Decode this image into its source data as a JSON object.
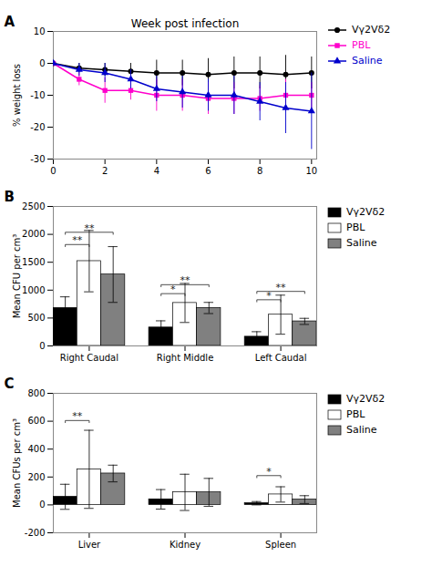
{
  "chart_data": [
    {
      "type": "line",
      "title": "Week post infection",
      "ylabel": "% weight loss",
      "annotations": [
        {
          "text": "A"
        }
      ],
      "x": [
        0,
        1,
        2,
        3,
        4,
        5,
        6,
        7,
        8,
        9,
        10
      ],
      "xlim": [
        0,
        10.2
      ],
      "xticks": [
        0,
        2,
        4,
        6,
        8,
        10
      ],
      "ylim": [
        -30,
        10
      ],
      "yticks": [
        10,
        0,
        -10,
        -20,
        -30
      ],
      "legend": "right",
      "series": [
        {
          "name": "Vγ2Vδ2",
          "color": "#000000",
          "marker": "circle",
          "values": [
            0,
            -1.5,
            -2,
            -2.5,
            -3,
            -3,
            -3.5,
            -3,
            -3,
            -3.5,
            -3
          ],
          "errors": [
            0.1,
            1.5,
            2,
            2.5,
            4,
            4,
            5,
            5,
            5,
            6,
            5
          ]
        },
        {
          "name": "PBL",
          "color": "#ff00cc",
          "marker": "square",
          "values": [
            0,
            -5,
            -8.5,
            -8.5,
            -10,
            -10,
            -11,
            -11,
            -11,
            -10,
            -10
          ],
          "errors": [
            0.1,
            2,
            4,
            3,
            5,
            5,
            5,
            5,
            4,
            5,
            4
          ]
        },
        {
          "name": "Saline",
          "color": "#0000cc",
          "marker": "triangle",
          "values": [
            0,
            -2,
            -3,
            -5,
            -8,
            -9,
            -10,
            -10,
            -12,
            -14,
            -15
          ],
          "errors": [
            0.1,
            2,
            3,
            3,
            4,
            5,
            5,
            6,
            6,
            8,
            12
          ]
        }
      ]
    },
    {
      "type": "bar",
      "ylabel": "Mean CFU per cm³",
      "categories": [
        "Right Caudal",
        "Right Middle",
        "Left Caudal"
      ],
      "ylim": [
        0,
        2500
      ],
      "yticks": [
        0,
        500,
        1000,
        1500,
        2000,
        2500
      ],
      "legend": "right",
      "annotations": [
        {
          "text": "B"
        },
        {
          "text": "**",
          "category": "Right Caudal",
          "from": "Vγ2Vδ2",
          "to": "PBL",
          "y": 1780
        },
        {
          "text": "**",
          "category": "Right Caudal",
          "from": "Vγ2Vδ2",
          "to": "Saline",
          "y": 2000
        },
        {
          "text": "*",
          "category": "Right Middle",
          "from": "Vγ2Vδ2",
          "to": "PBL",
          "y": 900
        },
        {
          "text": "**",
          "category": "Right Middle",
          "from": "Vγ2Vδ2",
          "to": "Saline",
          "y": 1060
        },
        {
          "text": "*",
          "category": "Left Caudal",
          "from": "Vγ2Vδ2",
          "to": "PBL",
          "y": 790
        },
        {
          "text": "**",
          "category": "Left Caudal",
          "from": "Vγ2Vδ2",
          "to": "Saline",
          "y": 940
        }
      ],
      "series": [
        {
          "name": "Vγ2Vδ2",
          "color": "#000000",
          "values": [
            680,
            330,
            165
          ],
          "errors": [
            200,
            120,
            90
          ]
        },
        {
          "name": "PBL",
          "color": "#ffffff",
          "values": [
            1520,
            770,
            560
          ],
          "errors": [
            550,
            350,
            350
          ]
        },
        {
          "name": "Saline",
          "color": "#808080",
          "values": [
            1280,
            680,
            440
          ],
          "errors": [
            500,
            100,
            55
          ]
        }
      ]
    },
    {
      "type": "bar",
      "ylabel": "Mean CFUs per cm³",
      "categories": [
        "Liver",
        "Kidney",
        "Spleen"
      ],
      "ylim": [
        -200,
        800
      ],
      "yticks": [
        -200,
        0,
        200,
        400,
        600,
        800
      ],
      "legend": "right",
      "annotations": [
        {
          "text": "C"
        },
        {
          "text": "**",
          "category": "Liver",
          "from": "Vγ2Vδ2",
          "to": "PBL",
          "y": 590
        },
        {
          "text": "*",
          "category": "Spleen",
          "from": "Vγ2Vδ2",
          "to": "PBL",
          "y": 195
        }
      ],
      "series": [
        {
          "name": "Vγ2Vδ2",
          "color": "#000000",
          "values": [
            58,
            40,
            12
          ],
          "errors": [
            90,
            70,
            12
          ]
        },
        {
          "name": "PBL",
          "color": "#ffffff",
          "values": [
            255,
            90,
            75
          ],
          "errors": [
            280,
            130,
            55
          ]
        },
        {
          "name": "Saline",
          "color": "#808080",
          "values": [
            225,
            90,
            38
          ],
          "errors": [
            60,
            100,
            28
          ]
        }
      ]
    }
  ]
}
